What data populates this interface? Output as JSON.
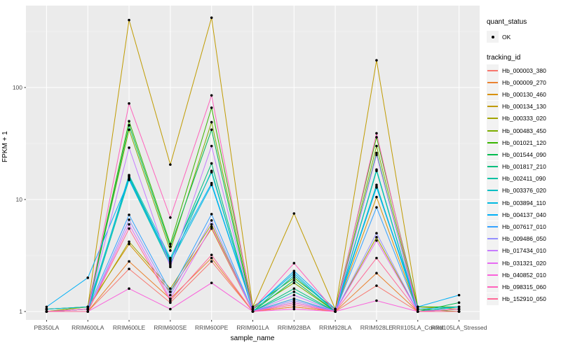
{
  "legend": {
    "quant_status_title": "quant_status",
    "ok_label": "OK",
    "tracking_title": "tracking_id"
  },
  "chart_data": {
    "type": "line",
    "title": "",
    "xlabel": "sample_name",
    "ylabel": "FPKM + 1",
    "log_y": true,
    "y_ticks": [
      1,
      10,
      100
    ],
    "ylim": [
      0.85,
      520
    ],
    "grid": true,
    "legend_position": "right",
    "panel_bg": "#EBEBEB",
    "gridline_color": "#FFFFFF",
    "axis_text_color": "#4D4D4D",
    "point_color": "#000000",
    "categories": [
      "PB350LA",
      "RRIM600LA",
      "RRIM600LE",
      "RRIM600SE",
      "RRIM600PE",
      "RRIM901LA",
      "RRIM928BA",
      "RRIM928LA",
      "RRIM928LE",
      "RRII105LA_Control",
      "RRII105LA_Stressed"
    ],
    "series": [
      {
        "name": "Hb_000003_380",
        "color": "#F8766D",
        "values": [
          1.0,
          1.0,
          2.4,
          1.2,
          2.8,
          1.0,
          1.1,
          1.0,
          1.7,
          1.0,
          1.0
        ]
      },
      {
        "name": "Hb_000009_270",
        "color": "#EA8331",
        "values": [
          1.0,
          1.0,
          2.8,
          1.3,
          3.0,
          1.0,
          1.1,
          1.0,
          2.2,
          1.0,
          1.0
        ]
      },
      {
        "name": "Hb_000130_460",
        "color": "#D89000",
        "values": [
          1.0,
          1.1,
          4.0,
          1.5,
          5.5,
          1.0,
          1.2,
          1.0,
          10.5,
          1.0,
          1.0
        ]
      },
      {
        "name": "Hb_000134_130",
        "color": "#C09B00",
        "values": [
          1.05,
          1.1,
          400,
          20.5,
          420,
          1.1,
          7.5,
          1.05,
          175,
          1.1,
          1.05
        ]
      },
      {
        "name": "Hb_000333_020",
        "color": "#A3A500",
        "values": [
          1.0,
          1.05,
          4.2,
          1.6,
          6.0,
          1.0,
          1.3,
          1.0,
          4.6,
          1.0,
          1.0
        ]
      },
      {
        "name": "Hb_000483_450",
        "color": "#7CAE00",
        "values": [
          1.0,
          1.1,
          42,
          3.5,
          49,
          1.05,
          1.8,
          1.0,
          30,
          1.05,
          1.0
        ]
      },
      {
        "name": "Hb_001021_120",
        "color": "#39B600",
        "values": [
          1.05,
          1.1,
          50,
          4.0,
          66,
          1.1,
          2.0,
          1.05,
          36,
          1.1,
          1.1
        ]
      },
      {
        "name": "Hb_001544_090",
        "color": "#00BB4E",
        "values": [
          1.0,
          1.05,
          46,
          3.8,
          42,
          1.0,
          1.9,
          1.0,
          26,
          1.0,
          1.2
        ]
      },
      {
        "name": "Hb_001817_210",
        "color": "#00BF7D",
        "values": [
          1.0,
          1.05,
          16,
          2.8,
          21,
          1.0,
          1.6,
          1.0,
          18,
          1.0,
          1.1
        ]
      },
      {
        "name": "Hb_002411_090",
        "color": "#00C1A3",
        "values": [
          1.0,
          1.0,
          15,
          2.6,
          18,
          1.0,
          1.5,
          1.0,
          13.5,
          1.0,
          1.05
        ]
      },
      {
        "name": "Hb_003376_020",
        "color": "#00BFC4",
        "values": [
          1.0,
          1.05,
          16.5,
          3.0,
          17.5,
          1.0,
          2.1,
          1.0,
          18.5,
          1.0,
          1.1
        ]
      },
      {
        "name": "Hb_003894_110",
        "color": "#00BAE0",
        "values": [
          1.05,
          1.1,
          15.5,
          2.7,
          13.5,
          1.05,
          2.2,
          1.0,
          12.8,
          1.05,
          1.1
        ]
      },
      {
        "name": "Hb_004137_040",
        "color": "#00B0F6",
        "values": [
          1.1,
          2.0,
          15,
          2.9,
          14,
          1.05,
          2.3,
          1.05,
          13,
          1.1,
          1.4
        ]
      },
      {
        "name": "Hb_007617_010",
        "color": "#35A2FF",
        "values": [
          1.0,
          1.05,
          7.3,
          1.5,
          7.4,
          1.0,
          1.3,
          1.0,
          8.5,
          1.0,
          1.05
        ]
      },
      {
        "name": "Hb_009486_050",
        "color": "#9590FF",
        "values": [
          1.0,
          1.0,
          6.6,
          1.4,
          6.5,
          1.0,
          1.25,
          1.0,
          5.0,
          1.0,
          1.0
        ]
      },
      {
        "name": "Hb_017434_010",
        "color": "#C77CFF",
        "values": [
          1.0,
          1.05,
          29,
          2.5,
          30,
          1.0,
          1.4,
          1.0,
          25,
          1.0,
          1.05
        ]
      },
      {
        "name": "Hb_031321_020",
        "color": "#E76BF3",
        "values": [
          1.0,
          1.0,
          6.0,
          1.3,
          5.7,
          1.0,
          1.2,
          1.0,
          4.3,
          1.0,
          1.0
        ]
      },
      {
        "name": "Hb_040852_010",
        "color": "#FA62DB",
        "values": [
          1.0,
          1.0,
          1.6,
          1.05,
          1.8,
          1.0,
          1.05,
          1.0,
          1.25,
          1.0,
          1.0
        ]
      },
      {
        "name": "Hb_098315_060",
        "color": "#FF62BC",
        "values": [
          1.0,
          1.05,
          72,
          6.9,
          85,
          1.05,
          2.7,
          1.0,
          39,
          1.0,
          1.05
        ]
      },
      {
        "name": "Hb_152910_050",
        "color": "#FF6A98",
        "values": [
          1.0,
          1.0,
          5.5,
          1.25,
          3.2,
          1.0,
          1.15,
          1.0,
          3.0,
          1.0,
          1.0
        ]
      }
    ]
  }
}
